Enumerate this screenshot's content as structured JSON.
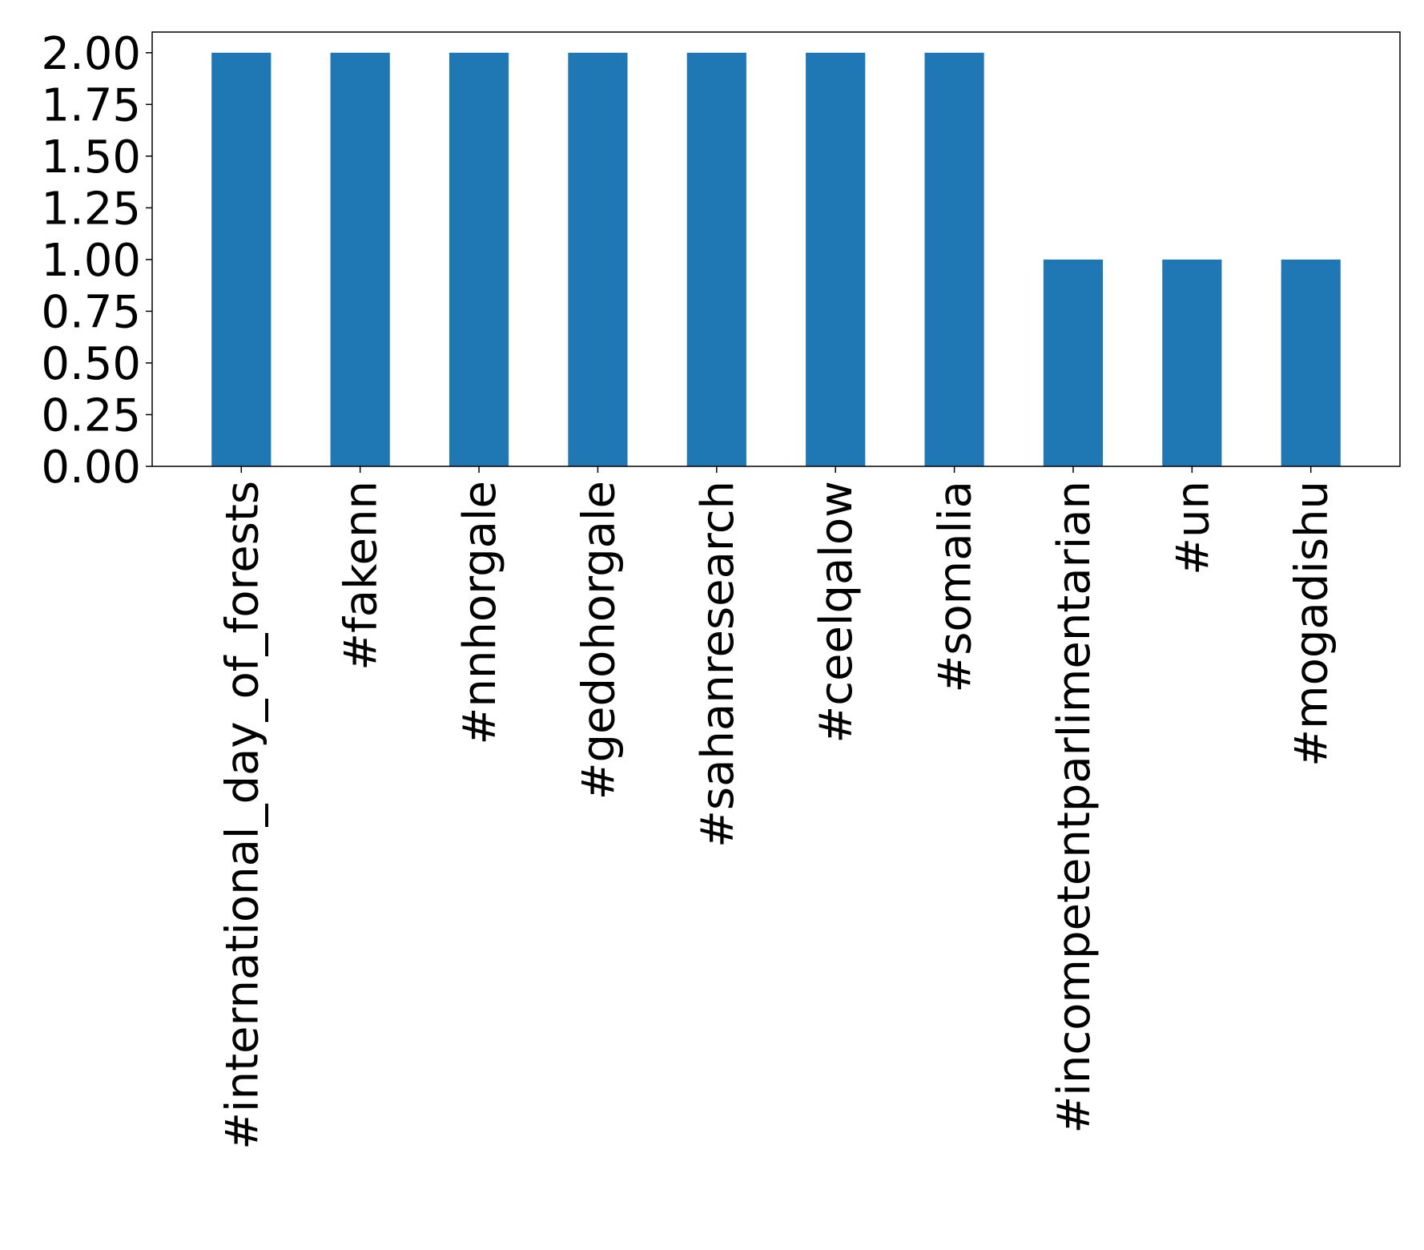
{
  "chart_data": {
    "type": "bar",
    "title": "",
    "xlabel": "",
    "ylabel": "",
    "categories": [
      "#international_day_of_forests",
      "#fakenn",
      "#nnhorgale",
      "#gedohorgale",
      "#sahanresearch",
      "#ceelqalow",
      "#somalia",
      "#incompetentparlimentarian",
      "#un",
      "#mogadishu"
    ],
    "values": [
      2,
      2,
      2,
      2,
      2,
      2,
      2,
      1,
      1,
      1
    ],
    "ylim": [
      0,
      2.1
    ],
    "yticks": [
      "0.00",
      "0.25",
      "0.50",
      "0.75",
      "1.00",
      "1.25",
      "1.50",
      "1.75",
      "2.00"
    ],
    "bar_color": "#1f77b4",
    "grid": false,
    "legend": "none"
  }
}
